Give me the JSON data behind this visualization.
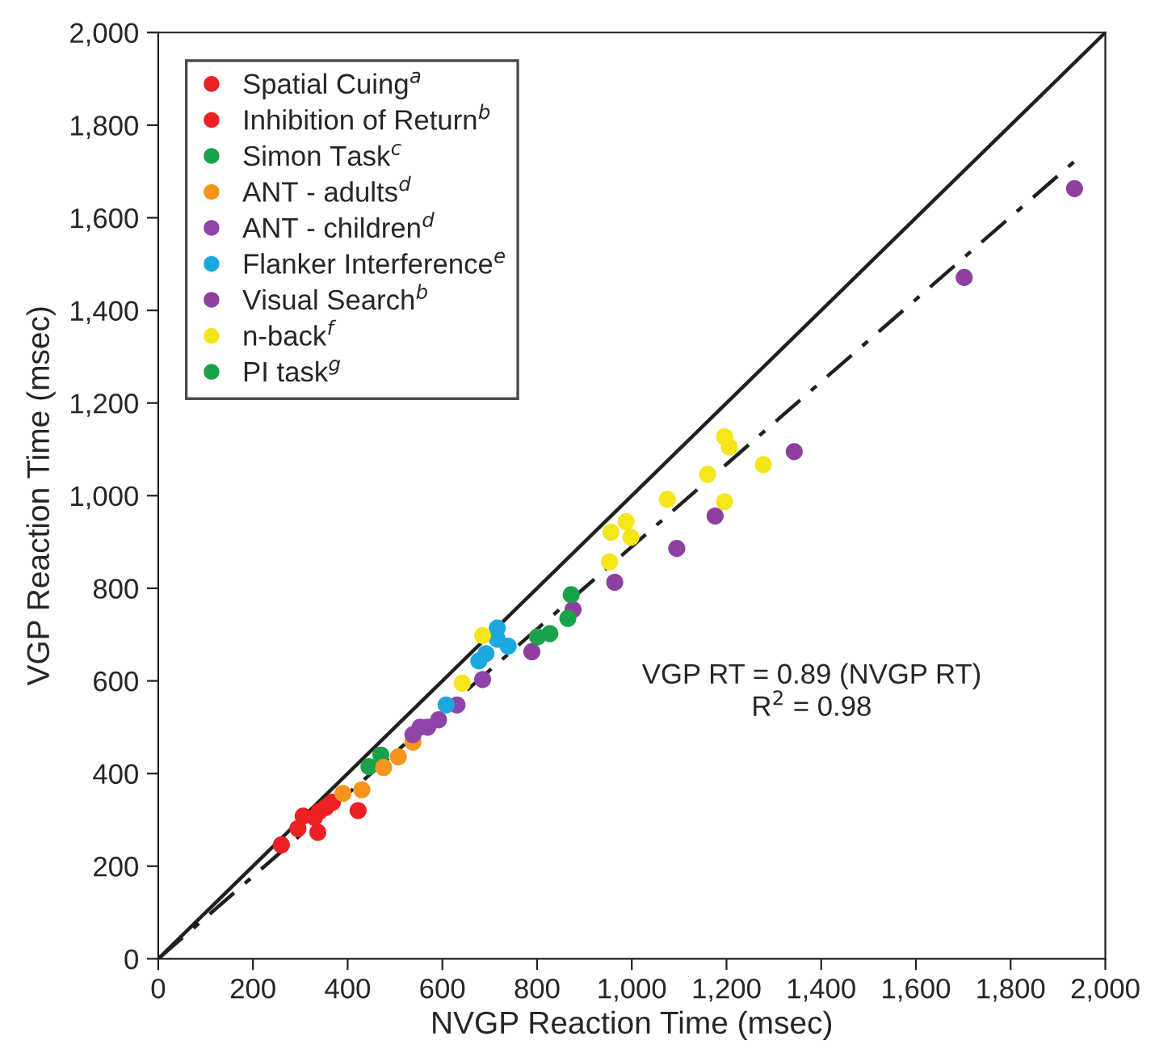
{
  "chart_data": {
    "type": "scatter",
    "xlabel": "NVGP Reaction Time (msec)",
    "ylabel": "VGP Reaction Time (msec)",
    "xlim": [
      0,
      2000
    ],
    "ylim": [
      0,
      2000
    ],
    "xticks": [
      0,
      200,
      400,
      600,
      800,
      {
        "value": 1000,
        "label": "1,000"
      },
      {
        "value": 1200,
        "label": "1,200"
      },
      {
        "value": 1400,
        "label": "1,400"
      },
      {
        "value": 1600,
        "label": "1,600"
      },
      {
        "value": 1800,
        "label": "1,800"
      },
      {
        "value": 2000,
        "label": "2,000"
      }
    ],
    "yticks": [
      0,
      200,
      400,
      600,
      800,
      {
        "value": 1000,
        "label": "1,000"
      },
      {
        "value": 1200,
        "label": "1,200"
      },
      {
        "value": 1400,
        "label": "1,400"
      },
      {
        "value": 1600,
        "label": "1,600"
      },
      {
        "value": 1800,
        "label": "1,800"
      },
      {
        "value": 2000,
        "label": "2,000"
      }
    ],
    "grid": false,
    "legend": "top left",
    "marker": "circle",
    "annotations": [
      "VGP RT = 0.89 (NVGP RT)",
      "R$^{2}$ = 0.98"
    ],
    "series": [
      {
        "type": "line",
        "marker": "none",
        "line_style": "solid",
        "color": "#231f20",
        "x": [
          0,
          2000
        ],
        "values": [
          0,
          2000
        ]
      },
      {
        "type": "line",
        "marker": "none",
        "line_style": "dashdot",
        "color": "#231f20",
        "x": [
          0,
          1935
        ],
        "values": [
          0,
          1722
        ]
      },
      {
        "name": "Spatial Cuing$^{a}$",
        "color": "#ed2024",
        "x": [
          260,
          295,
          306,
          337,
          422,
          330
        ],
        "values": [
          246,
          281,
          308,
          273,
          320,
          305
        ]
      },
      {
        "name": "Inhibition of Return$^{b}$",
        "color": "#ed2024",
        "x": [
          340,
          354,
          368
        ],
        "values": [
          318,
          327,
          338
        ]
      },
      {
        "name": "Simon Task$^{c}$",
        "color": "#1aa24a",
        "x": [
          445,
          470
        ],
        "values": [
          415,
          440
        ]
      },
      {
        "name": "ANT - adults$^{d}$",
        "color": "#f7941d",
        "x": [
          390,
          430,
          476,
          507,
          538
        ],
        "values": [
          357,
          365,
          413,
          436,
          468
        ]
      },
      {
        "name": "ANT - children$^{d}$",
        "color": "#8e44a8",
        "x": [
          538,
          553,
          569,
          592,
          631,
          685
        ],
        "values": [
          484,
          500,
          500,
          516,
          548,
          603
        ]
      },
      {
        "name": "Flanker Interference$^{e}$",
        "color": "#1ba8e0",
        "x": [
          608,
          677,
          692,
          716,
          739,
          716
        ],
        "values": [
          548,
          643,
          659,
          714,
          675,
          690
        ]
      },
      {
        "name": "Visual Search$^{b}$",
        "color": "#8e3fa0",
        "x": [
          789,
          876,
          964,
          1095,
          1176,
          1343,
          1702,
          1935
        ],
        "values": [
          663,
          754,
          813,
          886,
          956,
          1095,
          1471,
          1663
        ]
      },
      {
        "name": "n-back$^{f}$",
        "color": "#f5e51b",
        "x": [
          642,
          685,
          953,
          956,
          988,
          998,
          1075,
          1160,
          1196,
          1196,
          1206,
          1278
        ],
        "values": [
          595,
          698,
          857,
          921,
          944,
          910,
          992,
          1046,
          987,
          1127,
          1105,
          1067
        ]
      },
      {
        "name": "PI task$^{g}$",
        "color": "#1aa24a",
        "x": [
          801,
          827,
          865,
          872
        ],
        "values": [
          695,
          702,
          735,
          786
        ]
      }
    ]
  }
}
